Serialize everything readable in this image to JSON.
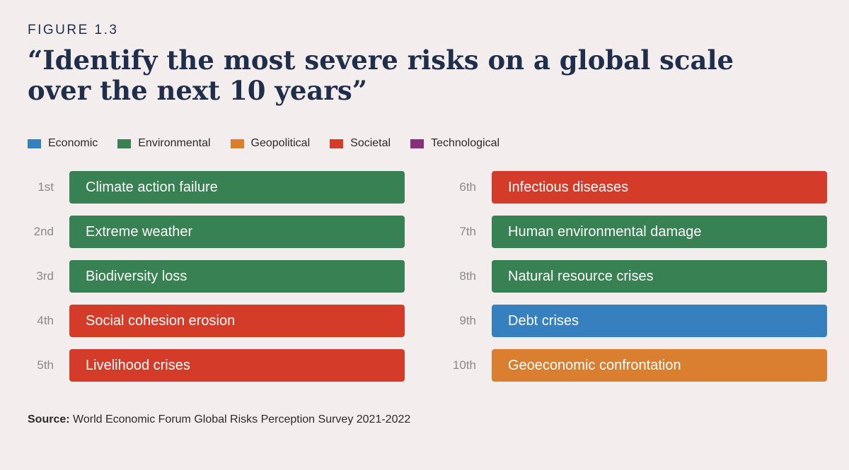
{
  "figure_label": "FIGURE 1.3",
  "chart_data": {
    "type": "table",
    "title": "“Identify the most severe risks on a global scale over the next 10 years”",
    "legend": [
      {
        "category": "Economic",
        "color": "#3780c0"
      },
      {
        "category": "Environmental",
        "color": "#378152"
      },
      {
        "category": "Geopolitical",
        "color": "#da7f30"
      },
      {
        "category": "Societal",
        "color": "#d43b29"
      },
      {
        "category": "Technological",
        "color": "#86307a"
      }
    ],
    "rankings": [
      {
        "rank": "1st",
        "risk": "Climate action failure",
        "category": "Environmental"
      },
      {
        "rank": "2nd",
        "risk": "Extreme weather",
        "category": "Environmental"
      },
      {
        "rank": "3rd",
        "risk": "Biodiversity loss",
        "category": "Environmental"
      },
      {
        "rank": "4th",
        "risk": "Social cohesion erosion",
        "category": "Societal"
      },
      {
        "rank": "5th",
        "risk": "Livelihood crises",
        "category": "Societal"
      },
      {
        "rank": "6th",
        "risk": "Infectious diseases",
        "category": "Societal"
      },
      {
        "rank": "7th",
        "risk": "Human environmental damage",
        "category": "Environmental"
      },
      {
        "rank": "8th",
        "risk": "Natural resource crises",
        "category": "Environmental"
      },
      {
        "rank": "9th",
        "risk": "Debt crises",
        "category": "Economic"
      },
      {
        "rank": "10th",
        "risk": "Geoeconomic confrontation",
        "category": "Geopolitical"
      }
    ]
  },
  "source": {
    "label": "Source:",
    "text": " World Economic Forum Global Risks Perception Survey 2021-2022"
  }
}
